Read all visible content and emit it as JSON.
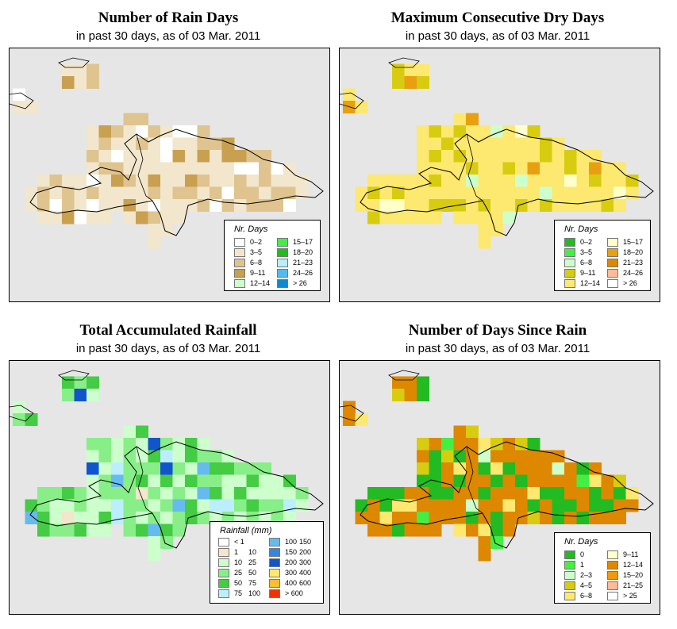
{
  "panels": [
    {
      "title": "Number of Rain Days",
      "subtitle": "in past 30 days, as of  03 Mar. 2011",
      "legend": {
        "title": "Nr. Days",
        "items": [
          {
            "label": "0–2",
            "color": "#ffffff"
          },
          {
            "label": "3–5",
            "color": "#f2e6cc"
          },
          {
            "label": "6–8",
            "color": "#dfc48f"
          },
          {
            "label": "9–11",
            "color": "#c8a050"
          },
          {
            "label": "12–14",
            "color": "#ccffcc"
          },
          {
            "label": "15–17",
            "color": "#44ee44"
          },
          {
            "label": "18–20",
            "color": "#22bb22"
          },
          {
            "label": "21–23",
            "color": "#bbeeff"
          },
          {
            "label": "24–26",
            "color": "#55bbee"
          },
          {
            "label": "> 26",
            "color": "#1188cc"
          }
        ]
      }
    },
    {
      "title": "Maximum Consecutive Dry Days",
      "subtitle": "in past 30 days, as of  03 Mar. 2011",
      "legend": {
        "title": "Nr. Days",
        "items": [
          {
            "label": "0–2",
            "color": "#22bb22"
          },
          {
            "label": "3–5",
            "color": "#44ee44"
          },
          {
            "label": "6–8",
            "color": "#ccffcc"
          },
          {
            "label": "9–11",
            "color": "#d8cc10"
          },
          {
            "label": "12–14",
            "color": "#fde870"
          },
          {
            "label": "15–17",
            "color": "#ffffcc"
          },
          {
            "label": "18–20",
            "color": "#e8a010"
          },
          {
            "label": "21–23",
            "color": "#dd8800"
          },
          {
            "label": "24–26",
            "color": "#ffbb99"
          },
          {
            "label": "> 26",
            "color": "#ffffff"
          }
        ]
      }
    },
    {
      "title": "Total Accumulated Rainfall",
      "subtitle": "in past 30 days, as of  03 Mar. 2011",
      "legend": {
        "title": "Rainfall (mm)",
        "items": [
          {
            "lo": "< 1",
            "hi": "",
            "color": "#ffffff"
          },
          {
            "lo": "1",
            "hi": "10",
            "color": "#f2e6cc"
          },
          {
            "lo": "10",
            "hi": "25",
            "color": "#ccffcc"
          },
          {
            "lo": "25",
            "hi": "50",
            "color": "#88ee88"
          },
          {
            "lo": "50",
            "hi": "75",
            "color": "#44cc44"
          },
          {
            "lo": "75",
            "hi": "100",
            "color": "#bbeeff"
          },
          {
            "lo": "100",
            "hi": "150",
            "color": "#66bbee"
          },
          {
            "lo": "150",
            "hi": "200",
            "color": "#3388dd"
          },
          {
            "lo": "200",
            "hi": "300",
            "color": "#1155cc"
          },
          {
            "lo": "300",
            "hi": "400",
            "color": "#fde870"
          },
          {
            "lo": "400",
            "hi": "600",
            "color": "#ffbb33"
          },
          {
            "lo": "> 600",
            "hi": "",
            "color": "#ee3300"
          }
        ]
      }
    },
    {
      "title": "Number of Days Since Rain",
      "subtitle": "in past 30 days, as of  03 Mar. 2011",
      "legend": {
        "title": "Nr. Days",
        "items": [
          {
            "label": "0",
            "color": "#22bb22"
          },
          {
            "label": "1",
            "color": "#44ee44"
          },
          {
            "label": "2–3",
            "color": "#ccffcc"
          },
          {
            "label": "4–5",
            "color": "#d8cc10"
          },
          {
            "label": "6–8",
            "color": "#fde870"
          },
          {
            "label": "9–11",
            "color": "#ffffcc"
          },
          {
            "label": "12–14",
            "color": "#dd8800"
          },
          {
            "label": "15–20",
            "color": "#ee9910"
          },
          {
            "label": "21–25",
            "color": "#ffbb99"
          },
          {
            "label": "> 25",
            "color": "#ffffff"
          }
        ]
      }
    }
  ]
}
